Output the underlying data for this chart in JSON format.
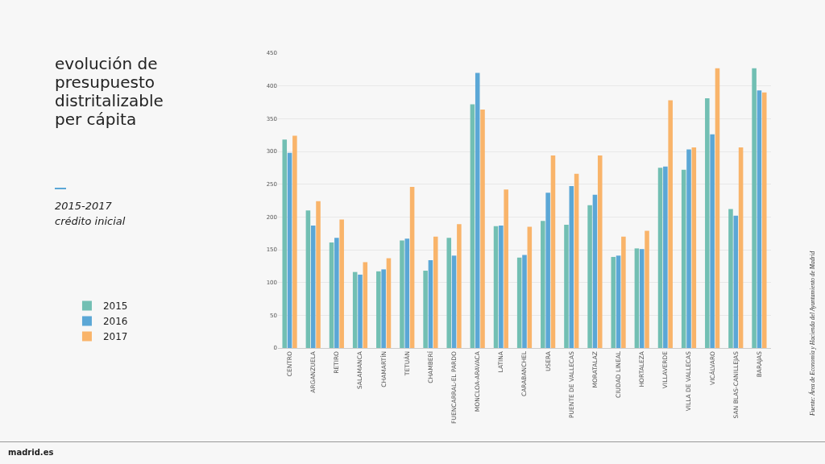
{
  "chart_data": {
    "type": "bar",
    "title": "evolución de presupuesto distritalizable per cápita",
    "subtitle": "2015-2017 crédito inicial",
    "categories": [
      "CENTRO",
      "ARGANZUELA",
      "RETIRO",
      "SALAMANCA",
      "CHAMARTÍN",
      "TETUÁN",
      "CHAMBERÍ",
      "FUENCARRAL-EL PARDO",
      "MONCLOA-ARAVACA",
      "LATINA",
      "CARABANCHEL",
      "USERA",
      "PUENTE DE VALLECAS",
      "MORATALAZ",
      "CIUDAD LINEAL",
      "HORTALEZA",
      "VILLAVERDE",
      "VILLA DE VALLECAS",
      "VICÁLVARO",
      "SAN BLAS-CANILLEJAS",
      "BARAJAS"
    ],
    "series": [
      {
        "name": "2015",
        "color": "#72bfb3",
        "values": [
          318,
          210,
          161,
          116,
          117,
          164,
          118,
          168,
          372,
          186,
          138,
          194,
          188,
          218,
          139,
          152,
          275,
          272,
          381,
          212,
          427
        ]
      },
      {
        "name": "2016",
        "color": "#5ba7d6",
        "values": [
          298,
          187,
          168,
          112,
          120,
          167,
          134,
          141,
          420,
          187,
          142,
          237,
          247,
          234,
          141,
          151,
          277,
          303,
          326,
          202,
          393
        ]
      },
      {
        "name": "2017",
        "color": "#f9b46a",
        "values": [
          324,
          224,
          196,
          131,
          137,
          246,
          170,
          189,
          364,
          242,
          185,
          294,
          266,
          294,
          170,
          179,
          378,
          306,
          427,
          306,
          390
        ]
      }
    ],
    "ylim": [
      0,
      450
    ],
    "yticks": [
      0,
      50,
      100,
      150,
      200,
      250,
      300,
      350,
      400,
      450
    ],
    "grid": "y",
    "legend": "bottom left",
    "annotations": [
      "Fuente: Área de Economía y Hacienda del Ayuntamiento de Madrid",
      "madrid.es"
    ]
  }
}
